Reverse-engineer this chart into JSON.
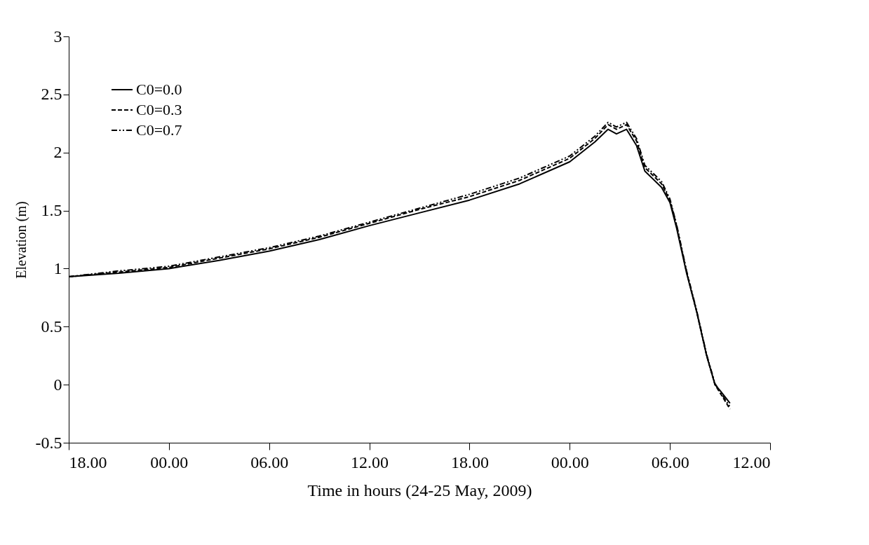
{
  "chart_data": {
    "type": "line",
    "xlabel": "Time in hours (24-25 May, 2009)",
    "ylabel": "Elevation (m)",
    "xlim": [
      "2009-05-24T18:00",
      "2009-05-26T12:00"
    ],
    "xticks": [
      {
        "value": "2009-05-24T18:00",
        "label": "18.00"
      },
      {
        "value": "2009-05-25T00:00",
        "label": "00.00"
      },
      {
        "value": "2009-05-25T06:00",
        "label": "06.00"
      },
      {
        "value": "2009-05-25T12:00",
        "label": "12.00"
      },
      {
        "value": "2009-05-25T18:00",
        "label": "18.00"
      },
      {
        "value": "2009-05-26T00:00",
        "label": "00.00"
      },
      {
        "value": "2009-05-26T06:00",
        "label": "06.00"
      },
      {
        "value": "2009-05-26T12:00",
        "label": "12.00"
      }
    ],
    "ylim": [
      -0.5,
      3
    ],
    "yticks": [
      -0.5,
      0,
      0.5,
      1,
      1.5,
      2,
      2.5,
      3
    ],
    "grid": false,
    "legend": "top left",
    "marker": "none",
    "x": [
      "2009-05-24T18:00",
      "2009-05-24T21:00",
      "2009-05-25T00:00",
      "2009-05-25T03:00",
      "2009-05-25T06:00",
      "2009-05-25T09:00",
      "2009-05-25T12:00",
      "2009-05-25T15:00",
      "2009-05-25T18:00",
      "2009-05-25T21:00",
      "2009-05-26T00:00",
      "2009-05-26T01:30",
      "2009-05-26T02:18",
      "2009-05-26T02:48",
      "2009-05-26T03:24",
      "2009-05-26T04:00",
      "2009-05-26T04:30",
      "2009-05-26T05:30",
      "2009-05-26T06:00",
      "2009-05-26T06:24",
      "2009-05-26T07:00",
      "2009-05-26T07:36",
      "2009-05-26T08:12",
      "2009-05-26T08:42",
      "2009-05-26T09:00",
      "2009-05-26T09:36"
    ],
    "series": [
      {
        "name": "C0=0.0",
        "color": "#000000",
        "line_style": "solid",
        "values": [
          0.93,
          0.96,
          1.0,
          1.07,
          1.15,
          1.25,
          1.37,
          1.48,
          1.59,
          1.73,
          1.92,
          2.09,
          2.2,
          2.16,
          2.2,
          2.06,
          1.84,
          1.7,
          1.57,
          1.35,
          0.96,
          0.63,
          0.25,
          0.0,
          -0.05,
          -0.16
        ]
      },
      {
        "name": "C0=0.3",
        "color": "#000000",
        "line_style": "dashed",
        "values": [
          0.93,
          0.97,
          1.01,
          1.09,
          1.17,
          1.27,
          1.39,
          1.51,
          1.62,
          1.76,
          1.95,
          2.12,
          2.24,
          2.2,
          2.24,
          2.1,
          1.87,
          1.73,
          1.59,
          1.37,
          0.97,
          0.63,
          0.25,
          0.0,
          -0.07,
          -0.21
        ]
      },
      {
        "name": "C0=0.7",
        "color": "#000000",
        "line_style": "dotted",
        "values": [
          0.93,
          0.98,
          1.02,
          1.1,
          1.18,
          1.28,
          1.4,
          1.52,
          1.64,
          1.78,
          1.97,
          2.14,
          2.26,
          2.22,
          2.26,
          2.12,
          1.89,
          1.75,
          1.6,
          1.38,
          0.98,
          0.64,
          0.26,
          0.01,
          -0.06,
          -0.19
        ]
      }
    ]
  }
}
